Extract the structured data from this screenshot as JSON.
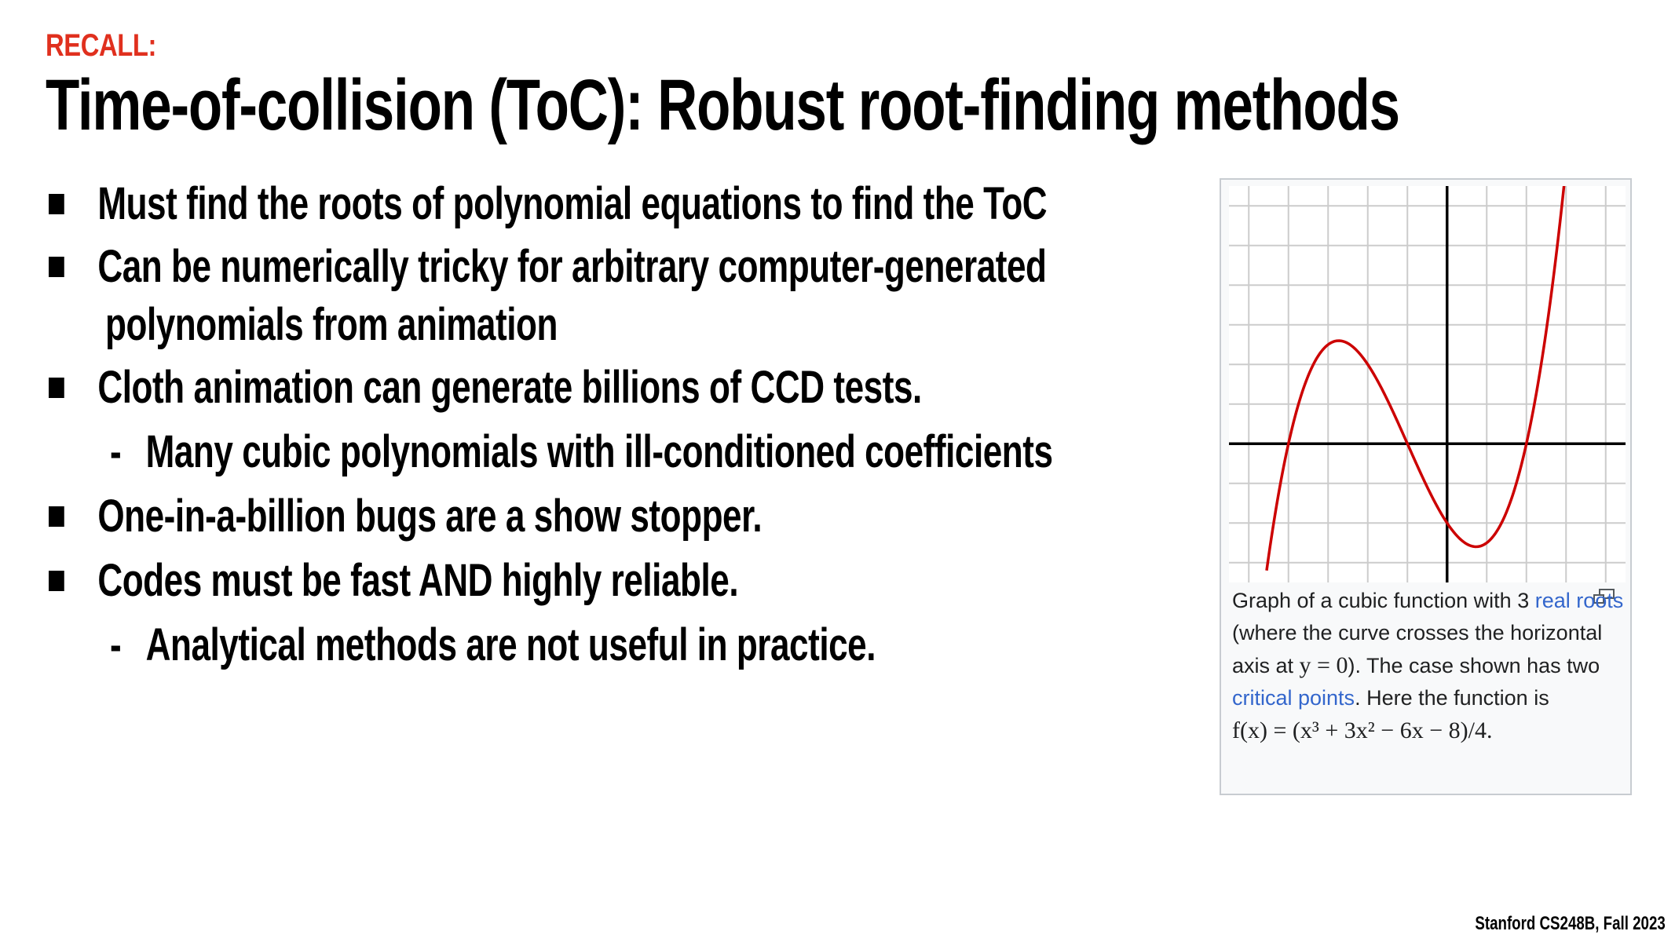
{
  "slide": {
    "kicker": "RECALL:",
    "title": "Time-of-collision (ToC): Robust root-finding methods",
    "footer": "Stanford CS248B, Fall 2023"
  },
  "bullets": [
    {
      "level": 1,
      "text": "Must find the roots of polynomial equations to find the ToC"
    },
    {
      "level": 1,
      "text": "Can be numerically tricky for arbitrary computer-generated"
    },
    {
      "level": 1,
      "continuation": true,
      "text": "polynomials from animation"
    },
    {
      "level": 1,
      "text": "Cloth animation can generate billions of CCD tests."
    },
    {
      "level": 2,
      "text": "Many cubic polynomials with ill-conditioned coefficients"
    },
    {
      "level": 1,
      "text": "One-in-a-billion bugs are a show stopper."
    },
    {
      "level": 1,
      "text": "Codes must be fast AND highly reliable."
    },
    {
      "level": 2,
      "text": "Analytical methods are not useful in practice."
    }
  ],
  "figure": {
    "caption_part1": "Graph of a cubic function with 3 ",
    "caption_link1": "real roots",
    "caption_part2": " (where the curve crosses the horizontal axis at ",
    "caption_math1": "y = 0",
    "caption_part3": "). The case shown has two ",
    "caption_link2": "critical points",
    "caption_part4": ". Here the function is",
    "caption_formula": "f(x) = (x³ + 3x² − 6x − 8)/4.",
    "enlarge_icon": "enlarge-icon",
    "colors": {
      "curve": "#cc0000",
      "grid": "#cccccc",
      "axis": "#000000",
      "link": "#3366cc"
    }
  },
  "chart_data": {
    "type": "line",
    "xlim": [
      -5.5,
      4.5
    ],
    "ylim": [
      -3.5,
      6.5
    ],
    "grid": true,
    "series": [
      {
        "function": "(x^3 + 3x^2 - 6x - 8)/4",
        "x_range": [
          -4.55,
          2.95
        ]
      }
    ],
    "roots": [
      -4,
      -1,
      2
    ]
  }
}
